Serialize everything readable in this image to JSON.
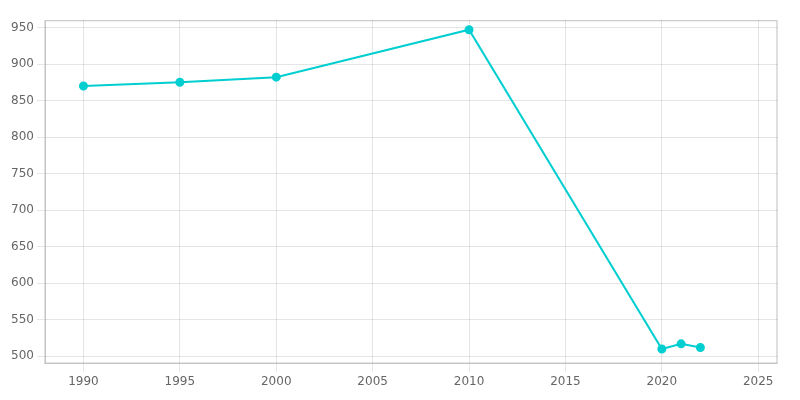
{
  "chart_data": {
    "type": "line",
    "x": [
      1990,
      1995,
      2000,
      2010,
      2020,
      2021,
      2022
    ],
    "values": [
      870,
      875,
      882,
      947,
      510,
      517,
      512
    ],
    "color": "#00CED1",
    "marker": "circle",
    "line_style": "solid",
    "xlim": [
      1988,
      2026
    ],
    "ylim": [
      490,
      960
    ],
    "xticks": [
      1990,
      1995,
      2000,
      2005,
      2010,
      2015,
      2020,
      2025
    ],
    "yticks": [
      500,
      550,
      600,
      650,
      700,
      750,
      800,
      850,
      900,
      950
    ],
    "grid": true
  }
}
